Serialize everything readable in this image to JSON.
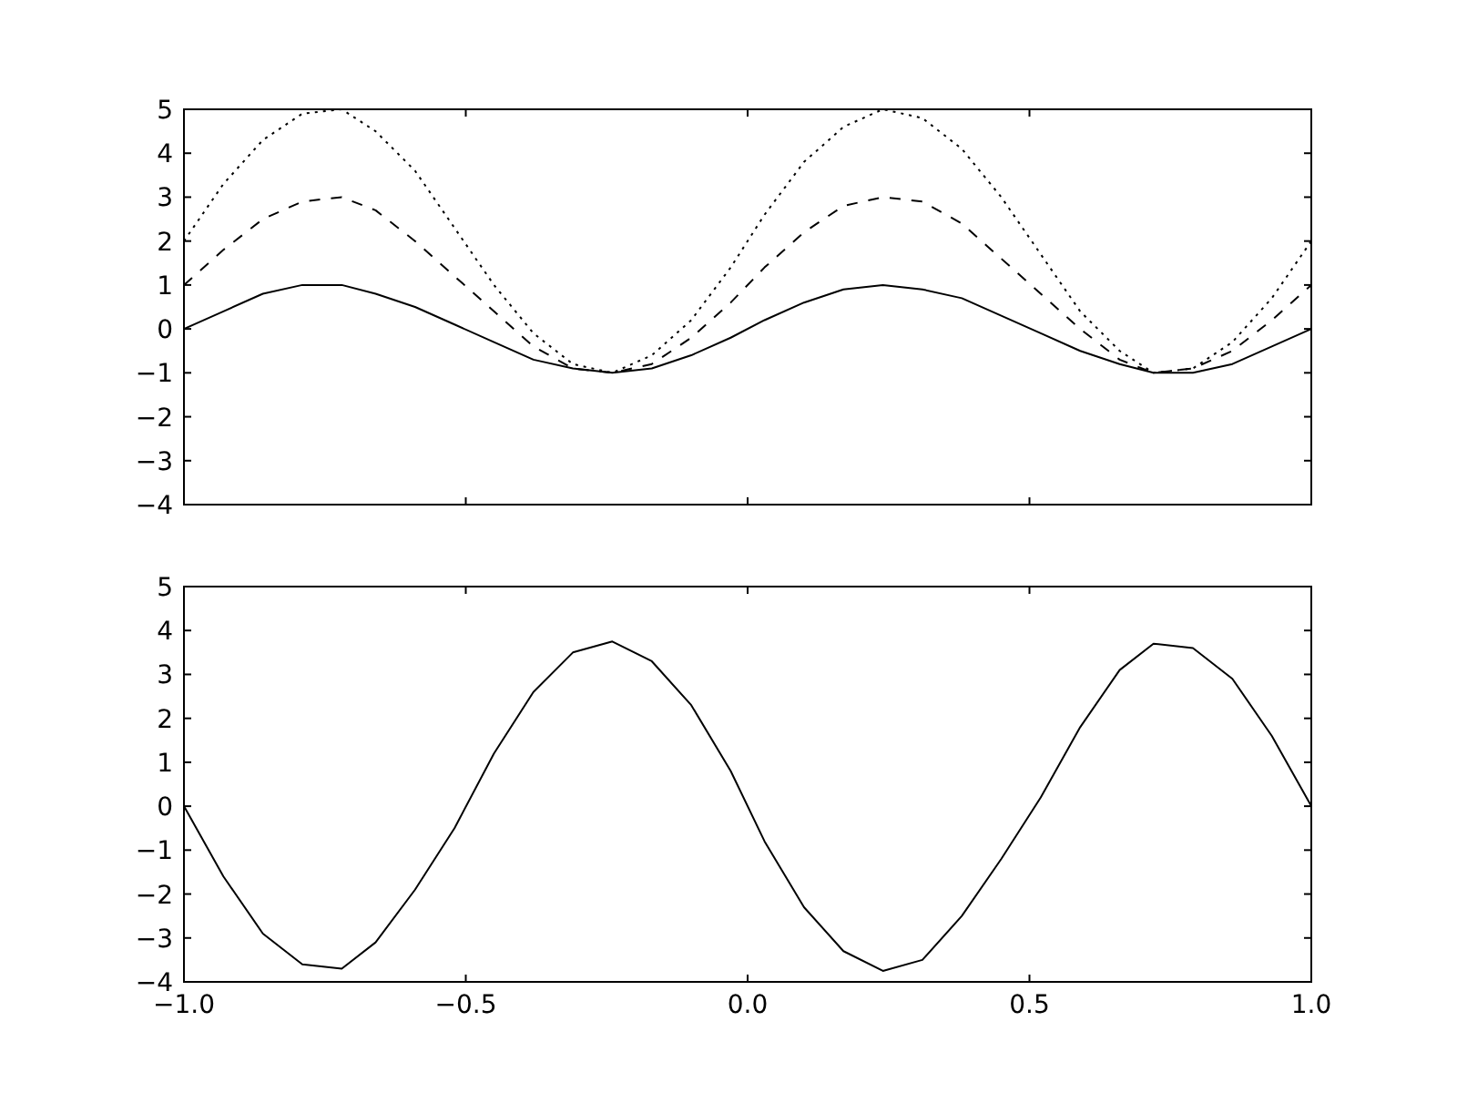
{
  "chart_data": [
    {
      "type": "line",
      "x": [
        -1,
        -0.93,
        -0.86,
        -0.79,
        -0.72,
        -0.66,
        -0.59,
        -0.52,
        -0.45,
        -0.38,
        -0.31,
        -0.24,
        -0.17,
        -0.1,
        -0.03,
        0.03,
        0.1,
        0.17,
        0.24,
        0.31,
        0.38,
        0.45,
        0.52,
        0.59,
        0.66,
        0.72,
        0.79,
        0.86,
        0.93,
        1
      ],
      "xticks": [
        -1,
        -0.5,
        0,
        0.5,
        1
      ],
      "series": [
        {
          "color": "#000000",
          "line_style": "solid",
          "values": [
            0,
            0.4,
            0.8,
            1.0,
            1.0,
            0.8,
            0.5,
            0.1,
            -0.3,
            -0.7,
            -0.9,
            -1.0,
            -0.9,
            -0.6,
            -0.2,
            0.2,
            0.6,
            0.9,
            1.0,
            0.9,
            0.7,
            0.3,
            -0.1,
            -0.5,
            -0.8,
            -1.0,
            -1.0,
            -0.8,
            -0.4,
            0
          ]
        },
        {
          "color": "#000000",
          "line_style": "dashed",
          "values": [
            1,
            1.8,
            2.5,
            2.9,
            3.0,
            2.7,
            2.0,
            1.2,
            0.4,
            -0.4,
            -0.9,
            -1.0,
            -0.8,
            -0.2,
            0.6,
            1.4,
            2.2,
            2.8,
            3.0,
            2.9,
            2.4,
            1.6,
            0.8,
            0.0,
            -0.7,
            -1.0,
            -0.9,
            -0.5,
            0.2,
            1
          ]
        },
        {
          "color": "#000000",
          "line_style": "dotted",
          "values": [
            2,
            3.3,
            4.3,
            4.9,
            5.0,
            4.5,
            3.6,
            2.3,
            1.0,
            -0.1,
            -0.8,
            -1.0,
            -0.6,
            0.2,
            1.4,
            2.6,
            3.8,
            4.6,
            5.0,
            4.8,
            4.1,
            3.0,
            1.7,
            0.4,
            -0.5,
            -1.0,
            -0.9,
            -0.3,
            0.7,
            2
          ]
        }
      ],
      "xlim": [
        -1,
        1
      ],
      "ylim": [
        -4,
        5
      ],
      "yticks": [
        {
          "value": -4,
          "label": "−4"
        },
        {
          "value": -3,
          "label": "−3"
        },
        {
          "value": -2,
          "label": "−2"
        },
        {
          "value": -1,
          "label": "−1"
        },
        0,
        1,
        2,
        3,
        4,
        5
      ],
      "tick_labels": "y"
    },
    {
      "type": "line",
      "x": [
        -1,
        -0.93,
        -0.86,
        -0.79,
        -0.72,
        -0.66,
        -0.59,
        -0.52,
        -0.45,
        -0.38,
        -0.31,
        -0.24,
        -0.17,
        -0.1,
        -0.03,
        0.03,
        0.1,
        0.17,
        0.24,
        0.31,
        0.38,
        0.45,
        0.52,
        0.59,
        0.66,
        0.72,
        0.79,
        0.86,
        0.93,
        1
      ],
      "series": [
        {
          "color": "#000000",
          "line_style": "solid",
          "values": [
            0,
            -1.6,
            -2.9,
            -3.6,
            -3.7,
            -3.1,
            -1.9,
            -0.5,
            1.2,
            2.6,
            3.5,
            3.75,
            3.3,
            2.3,
            0.8,
            -0.8,
            -2.3,
            -3.3,
            -3.75,
            -3.5,
            -2.5,
            -1.2,
            0.2,
            1.8,
            3.1,
            3.7,
            3.6,
            2.9,
            1.6,
            0
          ]
        }
      ],
      "xlim": [
        -1,
        1
      ],
      "xticks": [
        {
          "value": -1,
          "label": "−1.0"
        },
        {
          "value": -0.5,
          "label": "−0.5"
        },
        {
          "value": 0,
          "label": "0.0"
        },
        {
          "value": 0.5,
          "label": "0.5"
        },
        {
          "value": 1,
          "label": "1.0"
        }
      ],
      "ylim": [
        -4,
        5
      ],
      "yticks": [
        {
          "value": -4,
          "label": "−4"
        },
        {
          "value": -3,
          "label": "−3"
        },
        {
          "value": -2,
          "label": "−2"
        },
        {
          "value": -1,
          "label": "−1"
        },
        0,
        1,
        2,
        3,
        4,
        5
      ],
      "grid": false
    }
  ]
}
